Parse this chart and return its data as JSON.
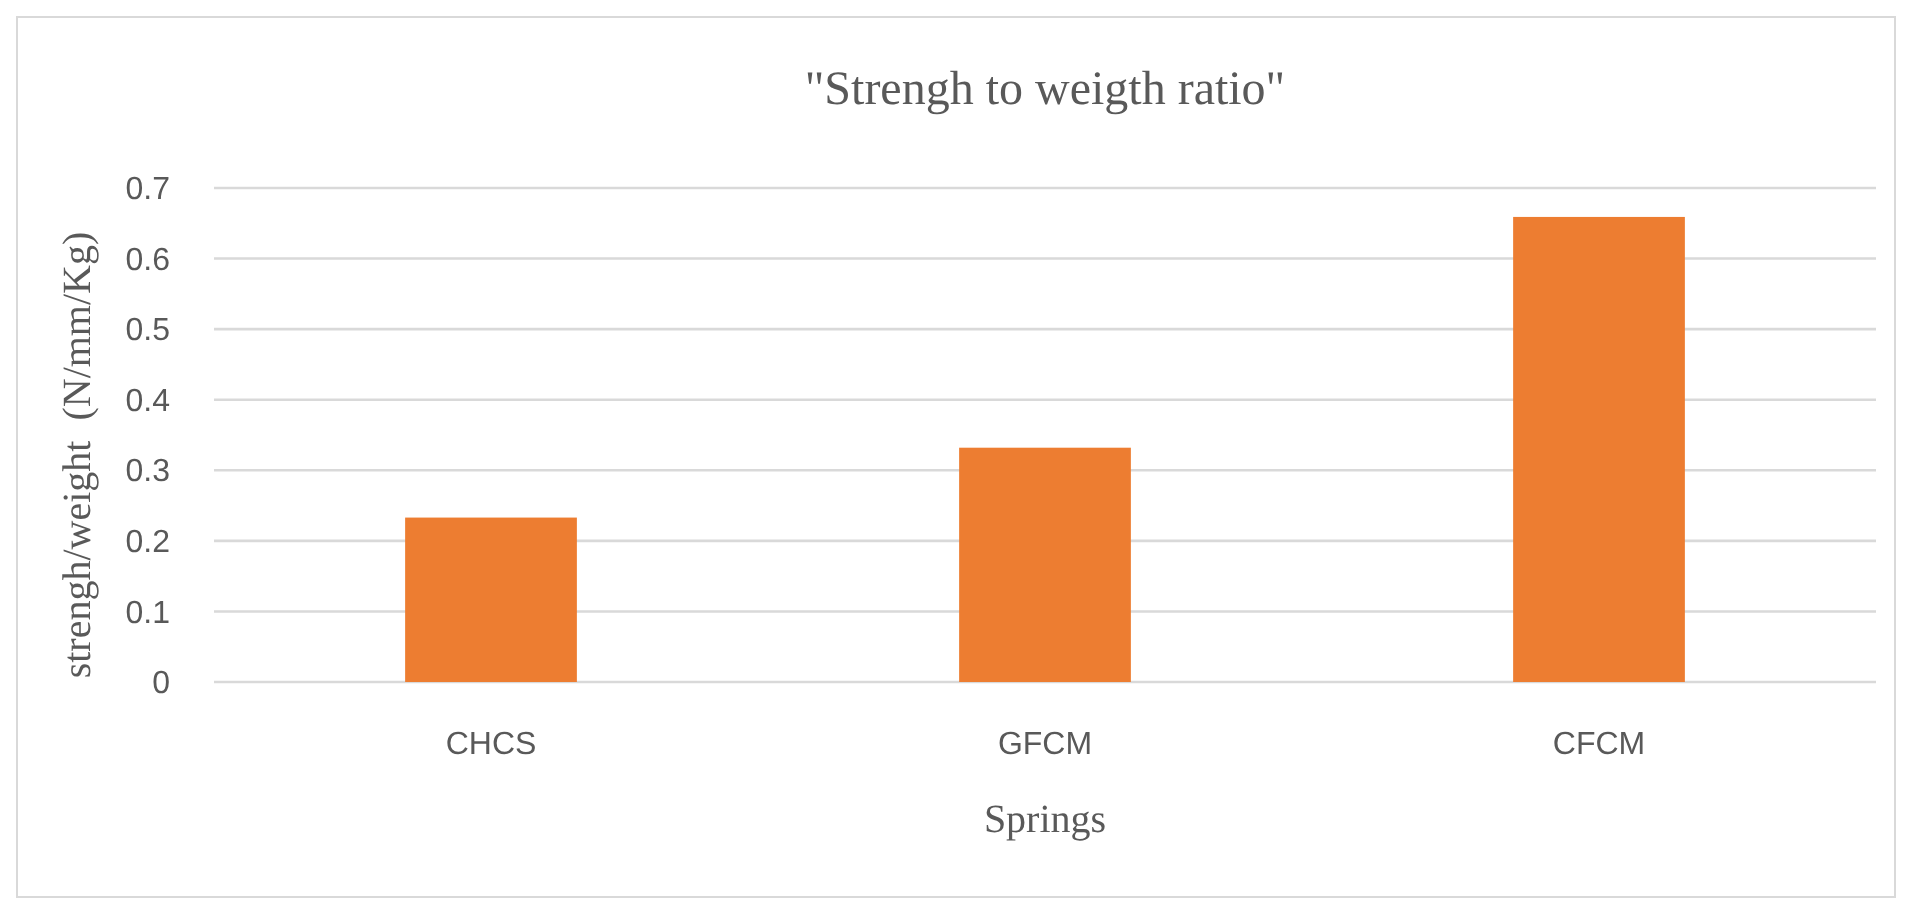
{
  "chart_data": {
    "type": "bar",
    "title": "\"Strengh to weigth ratio\"",
    "xlabel": "Springs",
    "ylabel": "strengh/weight  (N/mm/Kg)",
    "categories": [
      "CHCS",
      "GFCM",
      "CFCM"
    ],
    "values": [
      0.233,
      0.332,
      0.659
    ],
    "color": "#ed7d31",
    "ylim": [
      0,
      0.7
    ],
    "yticks": [
      0,
      0.1,
      0.2,
      0.3,
      0.4,
      0.5,
      0.6,
      0.7
    ],
    "grid": "y"
  }
}
